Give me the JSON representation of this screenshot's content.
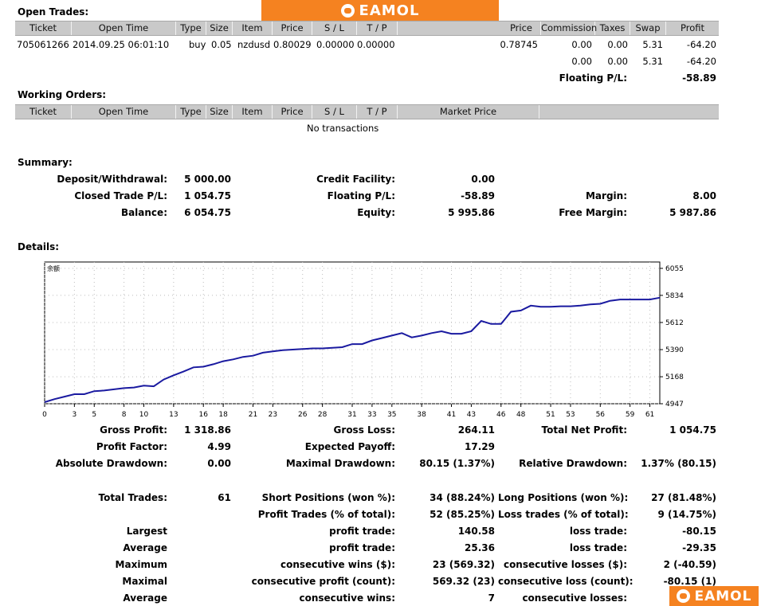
{
  "brand": {
    "name": "EAMOL",
    "color": "#f58220"
  },
  "open_trades": {
    "title": "Open Trades:",
    "columns": [
      "Ticket",
      "Open Time",
      "Type",
      "Size",
      "Item",
      "Price",
      "S / L",
      "T / P",
      "Price",
      "Commission",
      "Taxes",
      "Swap",
      "Profit"
    ],
    "row": {
      "ticket": "705061266",
      "open_time": "2014.09.25 06:01:10",
      "type": "buy",
      "size": "0.05",
      "item": "nzdusd",
      "price": "0.80029",
      "sl": "0.00000",
      "tp": "0.00000",
      "price2": "0.78745",
      "commission": "0.00",
      "taxes": "0.00",
      "swap": "5.31",
      "profit": "-64.20"
    },
    "totals": {
      "commission": "0.00",
      "taxes": "0.00",
      "swap": "5.31",
      "profit": "-64.20"
    },
    "floating_label": "Floating P/L:",
    "floating_value": "-58.89"
  },
  "working_orders": {
    "title": "Working Orders:",
    "columns": [
      "Ticket",
      "Open Time",
      "Type",
      "Size",
      "Item",
      "Price",
      "S / L",
      "T / P",
      "Market Price"
    ],
    "empty": "No transactions"
  },
  "summary": {
    "title": "Summary:",
    "deposit_label": "Deposit/Withdrawal:",
    "deposit": "5 000.00",
    "credit_label": "Credit Facility:",
    "credit": "0.00",
    "closed_label": "Closed Trade P/L:",
    "closed": "1 054.75",
    "floating_label": "Floating P/L:",
    "floating": "-58.89",
    "margin_label": "Margin:",
    "margin": "8.00",
    "balance_label": "Balance:",
    "balance": "6 054.75",
    "equity_label": "Equity:",
    "equity": "5 995.86",
    "free_margin_label": "Free Margin:",
    "free_margin": "5 987.86"
  },
  "details": {
    "title": "Details:",
    "stats": {
      "gross_profit_label": "Gross Profit:",
      "gross_profit": "1 318.86",
      "gross_loss_label": "Gross Loss:",
      "gross_loss": "264.11",
      "total_net_label": "Total Net Profit:",
      "total_net": "1 054.75",
      "profit_factor_label": "Profit Factor:",
      "profit_factor": "4.99",
      "expected_payoff_label": "Expected Payoff:",
      "expected_payoff": "17.29",
      "abs_dd_label": "Absolute Drawdown:",
      "abs_dd": "0.00",
      "max_dd_label": "Maximal Drawdown:",
      "max_dd": "80.15 (1.37%)",
      "rel_dd_label": "Relative Drawdown:",
      "rel_dd": "1.37% (80.15)",
      "total_trades_label": "Total Trades:",
      "total_trades": "61",
      "short_label": "Short Positions (won %):",
      "short": "34 (88.24%)",
      "long_label": "Long Positions (won %):",
      "long": "27 (81.48%)",
      "profit_trades_label": "Profit Trades (% of total):",
      "profit_trades": "52 (85.25%)",
      "loss_trades_label": "Loss trades (% of total):",
      "loss_trades": "9 (14.75%)",
      "largest_label": "Largest",
      "largest_profit_label": "profit trade:",
      "largest_profit": "140.58",
      "largest_loss_label": "loss trade:",
      "largest_loss": "-80.15",
      "average_label": "Average",
      "average_profit_label": "profit trade:",
      "average_profit": "25.36",
      "average_loss_label": "loss trade:",
      "average_loss": "-29.35",
      "maximum_label": "Maximum",
      "max_wins_label": "consecutive wins ($):",
      "max_wins": "23 (569.32)",
      "max_losses_label": "consecutive losses ($):",
      "max_losses": "2 (-40.59)",
      "maximal_label": "Maximal",
      "maximal_profit_label": "consecutive profit (count):",
      "maximal_profit": "569.32 (23)",
      "maximal_loss_label": "consecutive loss (count):",
      "maximal_loss": "-80.15 (1)",
      "average2_label": "Average",
      "avg_cons_wins_label": "consecutive wins:",
      "avg_cons_wins": "7",
      "avg_cons_losses_label": "consecutive losses:"
    }
  },
  "chart_data": {
    "type": "line",
    "title": "",
    "xlabel": "",
    "ylabel": "",
    "x_ticks": [
      0,
      3,
      5,
      8,
      10,
      13,
      16,
      18,
      21,
      23,
      26,
      28,
      31,
      33,
      35,
      38,
      41,
      43,
      46,
      48,
      51,
      53,
      56,
      59,
      61
    ],
    "y_ticks": [
      4947,
      5168,
      5390,
      5612,
      5834,
      6055
    ],
    "xlim": [
      0,
      62
    ],
    "ylim": [
      4947,
      6055
    ],
    "corner_label": "余额",
    "grid": true,
    "line_color": "#1a1aa0",
    "x": [
      0,
      1,
      2,
      3,
      4,
      5,
      6,
      7,
      8,
      9,
      10,
      11,
      12,
      13,
      14,
      15,
      16,
      17,
      18,
      19,
      20,
      21,
      22,
      23,
      24,
      25,
      26,
      27,
      28,
      29,
      30,
      31,
      32,
      33,
      34,
      35,
      36,
      37,
      38,
      39,
      40,
      41,
      42,
      43,
      44,
      45,
      46,
      47,
      48,
      49,
      50,
      51,
      52,
      53,
      54,
      55,
      56,
      57,
      58,
      59,
      60,
      61,
      62
    ],
    "y": [
      4960,
      4985,
      5005,
      5025,
      5025,
      5050,
      5055,
      5065,
      5075,
      5080,
      5095,
      5090,
      5145,
      5180,
      5210,
      5245,
      5250,
      5270,
      5295,
      5310,
      5330,
      5340,
      5365,
      5375,
      5385,
      5390,
      5395,
      5400,
      5400,
      5405,
      5410,
      5435,
      5435,
      5465,
      5485,
      5505,
      5525,
      5490,
      5505,
      5525,
      5540,
      5520,
      5520,
      5540,
      5625,
      5600,
      5600,
      5700,
      5710,
      5750,
      5740,
      5740,
      5745,
      5745,
      5750,
      5760,
      5765,
      5790,
      5800,
      5800,
      5800,
      5800,
      5815
    ]
  }
}
